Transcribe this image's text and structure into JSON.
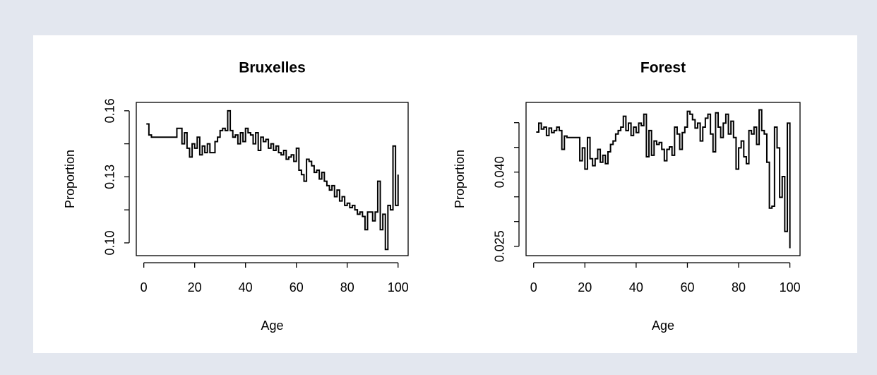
{
  "chart_data": [
    {
      "type": "line",
      "drawstyle": "steps-post",
      "title": "Bruxelles",
      "xlabel": "Age",
      "ylabel": "Proportion",
      "color": "#000000",
      "xlim": [
        -2.96,
        103.96
      ],
      "xticks": [
        0,
        20,
        40,
        60,
        80,
        100
      ],
      "ylim": [
        0.0942,
        0.1638
      ],
      "yticks": [
        {
          "value": 0.1,
          "label": "0.10"
        },
        {
          "value": 0.115,
          "label": null
        },
        0.13,
        {
          "value": 0.145,
          "label": null
        },
        0.16
      ],
      "x": [
        1,
        2,
        3,
        4,
        5,
        6,
        7,
        8,
        9,
        10,
        11,
        12,
        13,
        14,
        15,
        16,
        17,
        18,
        19,
        20,
        21,
        22,
        23,
        24,
        25,
        26,
        27,
        28,
        29,
        30,
        31,
        32,
        33,
        34,
        35,
        36,
        37,
        38,
        39,
        40,
        41,
        42,
        43,
        44,
        45,
        46,
        47,
        48,
        49,
        50,
        51,
        52,
        53,
        54,
        55,
        56,
        57,
        58,
        59,
        60,
        61,
        62,
        63,
        64,
        65,
        66,
        67,
        68,
        69,
        70,
        71,
        72,
        73,
        74,
        75,
        76,
        77,
        78,
        79,
        80,
        81,
        82,
        83,
        84,
        85,
        86,
        87,
        88,
        89,
        90,
        91,
        92,
        93,
        94,
        95,
        96,
        97,
        98,
        99,
        100
      ],
      "values": [
        0.154,
        0.149,
        0.148,
        0.148,
        0.148,
        0.148,
        0.148,
        0.148,
        0.148,
        0.148,
        0.148,
        0.148,
        0.152,
        0.152,
        0.145,
        0.15,
        0.143,
        0.139,
        0.145,
        0.143,
        0.148,
        0.14,
        0.144,
        0.141,
        0.145,
        0.141,
        0.141,
        0.146,
        0.148,
        0.151,
        0.152,
        0.151,
        0.16,
        0.151,
        0.148,
        0.149,
        0.145,
        0.15,
        0.146,
        0.152,
        0.15,
        0.149,
        0.145,
        0.15,
        0.142,
        0.148,
        0.146,
        0.147,
        0.143,
        0.145,
        0.142,
        0.144,
        0.141,
        0.14,
        0.142,
        0.138,
        0.139,
        0.14,
        0.137,
        0.143,
        0.133,
        0.131,
        0.128,
        0.138,
        0.137,
        0.135,
        0.132,
        0.133,
        0.129,
        0.132,
        0.128,
        0.126,
        0.124,
        0.126,
        0.121,
        0.124,
        0.119,
        0.121,
        0.117,
        0.118,
        0.116,
        0.117,
        0.115,
        0.113,
        0.114,
        0.112,
        0.106,
        0.114,
        0.114,
        0.11,
        0.114,
        0.128,
        0.106,
        0.113,
        0.097,
        0.117,
        0.115,
        0.144,
        0.117,
        0.131
      ]
    },
    {
      "type": "line",
      "drawstyle": "steps-post",
      "title": "Forest",
      "xlabel": "Age",
      "ylabel": "Proportion",
      "color": "#000000",
      "xlim": [
        -2.96,
        103.96
      ],
      "xticks": [
        0,
        20,
        40,
        60,
        80,
        100
      ],
      "ylim": [
        0.0231,
        0.0541
      ],
      "yticks": [
        {
          "value": 0.025,
          "label": "0.025"
        },
        {
          "value": 0.03,
          "label": null
        },
        {
          "value": 0.035,
          "label": null
        },
        {
          "value": 0.04,
          "label": "0.040"
        },
        {
          "value": 0.045,
          "label": null
        },
        {
          "value": 0.05,
          "label": null
        }
      ],
      "x": [
        1,
        2,
        3,
        4,
        5,
        6,
        7,
        8,
        9,
        10,
        11,
        12,
        13,
        14,
        15,
        16,
        17,
        18,
        19,
        20,
        21,
        22,
        23,
        24,
        25,
        26,
        27,
        28,
        29,
        30,
        31,
        32,
        33,
        34,
        35,
        36,
        37,
        38,
        39,
        40,
        41,
        42,
        43,
        44,
        45,
        46,
        47,
        48,
        49,
        50,
        51,
        52,
        53,
        54,
        55,
        56,
        57,
        58,
        59,
        60,
        61,
        62,
        63,
        64,
        65,
        66,
        67,
        68,
        69,
        70,
        71,
        72,
        73,
        74,
        75,
        76,
        77,
        78,
        79,
        80,
        81,
        82,
        83,
        84,
        85,
        86,
        87,
        88,
        89,
        90,
        91,
        92,
        93,
        94,
        95,
        96,
        97,
        98,
        99,
        100
      ],
      "values": [
        0.0481,
        0.0499,
        0.0487,
        0.0491,
        0.0474,
        0.0489,
        0.048,
        0.0484,
        0.0491,
        0.0484,
        0.0446,
        0.0473,
        0.047,
        0.047,
        0.047,
        0.047,
        0.047,
        0.0423,
        0.0449,
        0.0406,
        0.047,
        0.0427,
        0.0413,
        0.0427,
        0.0446,
        0.042,
        0.0434,
        0.0417,
        0.0441,
        0.0456,
        0.0463,
        0.0477,
        0.0484,
        0.0491,
        0.0513,
        0.0484,
        0.0499,
        0.0474,
        0.0491,
        0.048,
        0.0499,
        0.0494,
        0.0517,
        0.0431,
        0.0484,
        0.0434,
        0.0463,
        0.0456,
        0.046,
        0.0446,
        0.0423,
        0.0446,
        0.0451,
        0.0434,
        0.0491,
        0.0477,
        0.0446,
        0.048,
        0.0491,
        0.0523,
        0.0517,
        0.0506,
        0.0489,
        0.0499,
        0.0463,
        0.0491,
        0.0509,
        0.0517,
        0.0477,
        0.0441,
        0.052,
        0.0491,
        0.047,
        0.0499,
        0.0517,
        0.0477,
        0.0503,
        0.047,
        0.0406,
        0.0449,
        0.0463,
        0.0431,
        0.0417,
        0.0484,
        0.0477,
        0.0491,
        0.0456,
        0.0526,
        0.0484,
        0.0477,
        0.042,
        0.0327,
        0.0331,
        0.0491,
        0.0449,
        0.0349,
        0.0391,
        0.028,
        0.0499,
        0.0246
      ]
    }
  ]
}
